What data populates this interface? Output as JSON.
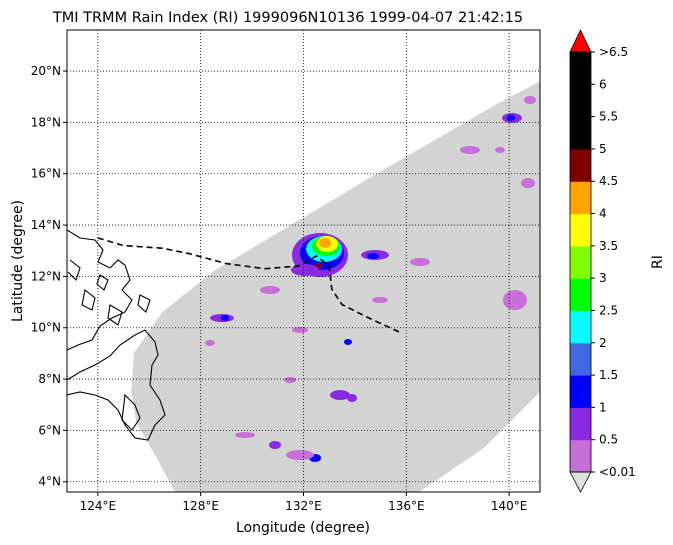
{
  "title": "TMI TRMM Rain Index (RI) 1999096N10136 1999-04-07 21:42:15",
  "map": {
    "xlabel": "Longitude (degree)",
    "ylabel": "Latitude (degree)",
    "lon_range": [
      122.8,
      141.2
    ],
    "lat_range": [
      3.6,
      21.6
    ],
    "lon_ticks": [
      124,
      128,
      132,
      136,
      140
    ],
    "lon_tick_labels": [
      "124°E",
      "128°E",
      "132°E",
      "136°E",
      "140°E"
    ],
    "lat_ticks": [
      4,
      6,
      8,
      10,
      12,
      14,
      16,
      18,
      20
    ],
    "lat_tick_labels": [
      "4°N",
      "6°N",
      "8°N",
      "10°N",
      "12°N",
      "14°N",
      "16°N",
      "18°N",
      "20°N"
    ],
    "grid": "dotted",
    "swath_color": "#d3d3d3",
    "swath_polygon": [
      [
        141.2,
        19.6
      ],
      [
        139.5,
        18.7
      ],
      [
        134.5,
        15.8
      ],
      [
        131.0,
        13.7
      ],
      [
        128.5,
        12.2
      ],
      [
        126.5,
        10.6
      ],
      [
        125.4,
        9.0
      ],
      [
        125.3,
        7.5
      ],
      [
        125.5,
        6.3
      ],
      [
        126.3,
        4.9
      ],
      [
        127.0,
        3.6
      ],
      [
        136.5,
        3.6
      ],
      [
        139.0,
        5.3
      ],
      [
        141.2,
        7.5
      ],
      [
        141.2,
        19.6
      ]
    ],
    "storm_track": {
      "style": "dashed",
      "color": "#000000",
      "points": [
        [
          124.0,
          13.5
        ],
        [
          125.0,
          13.2
        ],
        [
          126.5,
          13.1
        ],
        [
          127.5,
          12.9
        ],
        [
          129.0,
          12.5
        ],
        [
          130.5,
          12.3
        ],
        [
          131.8,
          12.4
        ],
        [
          132.5,
          12.8
        ],
        [
          133.0,
          12.4
        ],
        [
          133.1,
          11.5
        ],
        [
          133.5,
          10.9
        ],
        [
          134.5,
          10.4
        ],
        [
          135.8,
          9.8
        ]
      ]
    }
  },
  "colorbar": {
    "label": "RI",
    "levels": [
      {
        "label": "<0.01",
        "color": "#c86ed8"
      },
      {
        "label": "0.5",
        "color": "#8a2be2"
      },
      {
        "label": "1",
        "color": "#0000ff"
      },
      {
        "label": "1.5",
        "color": "#4169e1"
      },
      {
        "label": "2",
        "color": "#00ffff"
      },
      {
        "label": "2.5",
        "color": "#00ff00"
      },
      {
        "label": "3",
        "color": "#7fff00"
      },
      {
        "label": "3.5",
        "color": "#ffff00"
      },
      {
        "label": "4",
        "color": "#ffa500"
      },
      {
        "label": "4.5",
        "color": "#800000"
      },
      {
        "label": "5",
        "color": "#000000"
      },
      {
        "label": "5.5",
        "color": "#000000"
      },
      {
        "label": "6",
        "color": "#000000"
      },
      {
        "label": ">6.5",
        "color": "#ff0000"
      }
    ],
    "under_color": "#e0e0e0",
    "over_color": "#ff0000"
  }
}
